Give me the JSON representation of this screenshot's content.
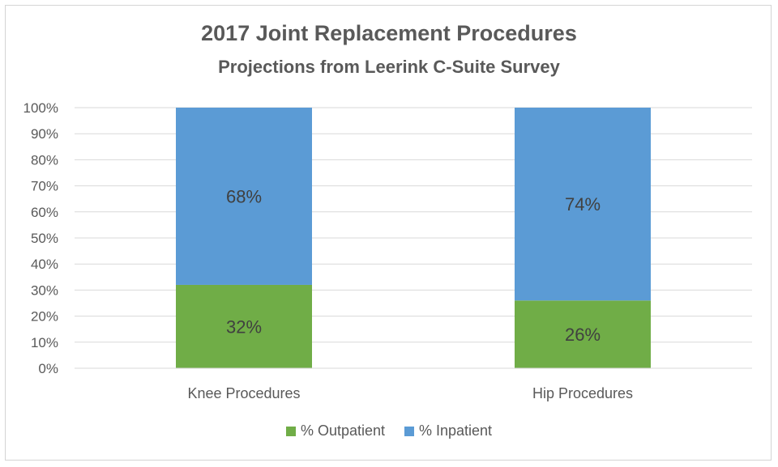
{
  "chart_data": {
    "type": "bar",
    "stacked": true,
    "title": "2017 Joint Replacement Procedures",
    "subtitle": "Projections from Leerink C-Suite Survey",
    "categories": [
      "Knee Procedures",
      "Hip Procedures"
    ],
    "series": [
      {
        "name": "% Outpatient",
        "values": [
          32,
          26
        ],
        "labels": [
          "32%",
          "26%"
        ],
        "color": "#70ad47"
      },
      {
        "name": "% Inpatient",
        "values": [
          68,
          74
        ],
        "labels": [
          "68%",
          "74%"
        ],
        "color": "#5b9bd5"
      }
    ],
    "ylim": [
      0,
      100
    ],
    "yticks": [
      "0%",
      "10%",
      "20%",
      "30%",
      "40%",
      "50%",
      "60%",
      "70%",
      "80%",
      "90%",
      "100%"
    ],
    "grid": true,
    "legend_position": "bottom"
  }
}
